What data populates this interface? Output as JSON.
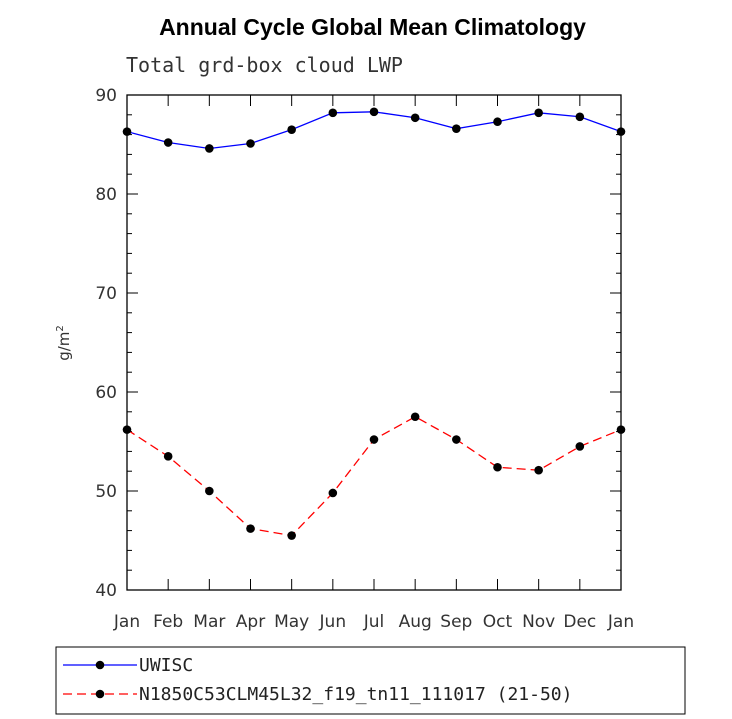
{
  "chart_data": {
    "type": "line",
    "title": "Annual Cycle Global Mean Climatology",
    "subtitle": "Total grd-box cloud LWP",
    "xlabel": "",
    "ylabel": "g/m",
    "ylabel_sup": "2",
    "categories": [
      "Jan",
      "Feb",
      "Mar",
      "Apr",
      "May",
      "Jun",
      "Jul",
      "Aug",
      "Sep",
      "Oct",
      "Nov",
      "Dec",
      "Jan"
    ],
    "ylim": [
      40,
      90
    ],
    "yticks": [
      40,
      50,
      60,
      70,
      80,
      90
    ],
    "series": [
      {
        "name": "UWISC",
        "color": "#0000ff",
        "dash": "solid",
        "values": [
          86.3,
          85.2,
          84.6,
          85.1,
          86.5,
          88.2,
          88.3,
          87.7,
          86.6,
          87.3,
          88.2,
          87.8,
          86.3
        ]
      },
      {
        "name": "N1850C53CLM45L32_f19_tn11_111017 (21-50)",
        "color": "#ff0000",
        "dash": "dashed",
        "values": [
          56.2,
          53.5,
          50.0,
          46.2,
          45.5,
          49.8,
          55.2,
          57.5,
          55.2,
          52.4,
          52.1,
          54.5,
          56.2
        ]
      }
    ],
    "legend_position": "bottom"
  }
}
